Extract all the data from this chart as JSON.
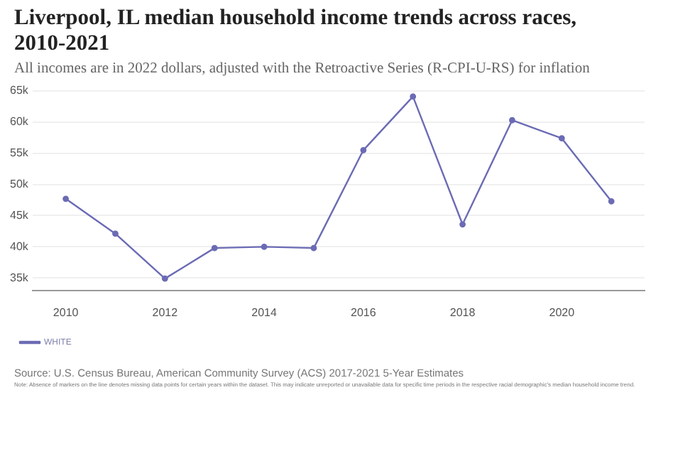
{
  "chart_data": {
    "type": "line",
    "title": "Liverpool, IL median household income trends across races, 2010-2021",
    "subtitle": "All incomes are in 2022 dollars, adjusted with the Retroactive Series (R-CPI-U-RS) for inflation",
    "x": [
      2010,
      2011,
      2012,
      2013,
      2014,
      2015,
      2016,
      2017,
      2018,
      2019,
      2020,
      2021
    ],
    "series": [
      {
        "name": "WHITE",
        "color": "#6b6bb5",
        "values": [
          47700,
          42100,
          34900,
          39800,
          40000,
          39800,
          55500,
          64100,
          43600,
          60300,
          57400,
          47300
        ]
      }
    ],
    "xlim": [
      2009.33,
      2021.67
    ],
    "xticks": [
      2010,
      2012,
      2014,
      2016,
      2018,
      2020
    ],
    "ylim": [
      33000,
      65500
    ],
    "yticks": [
      {
        "value": 35000,
        "label": "35k"
      },
      {
        "value": 40000,
        "label": "40k"
      },
      {
        "value": 45000,
        "label": "45k"
      },
      {
        "value": 50000,
        "label": "50k"
      },
      {
        "value": 55000,
        "label": "55k"
      },
      {
        "value": 60000,
        "label": "60k"
      },
      {
        "value": 65000,
        "label": "65k"
      }
    ],
    "grid": "y",
    "legend": "bottom left",
    "marker": "circle",
    "line_style": "solid",
    "annotations": [
      "Source: U.S. Census Bureau, American Community Survey (ACS) 2017-2021 5-Year Estimates",
      "Note: Absence of markers on the line denotes missing data points for certain years within the dataset. This may indicate unreported or unavailable data for specific time periods in the respective racial demographic's median household income trend."
    ]
  }
}
